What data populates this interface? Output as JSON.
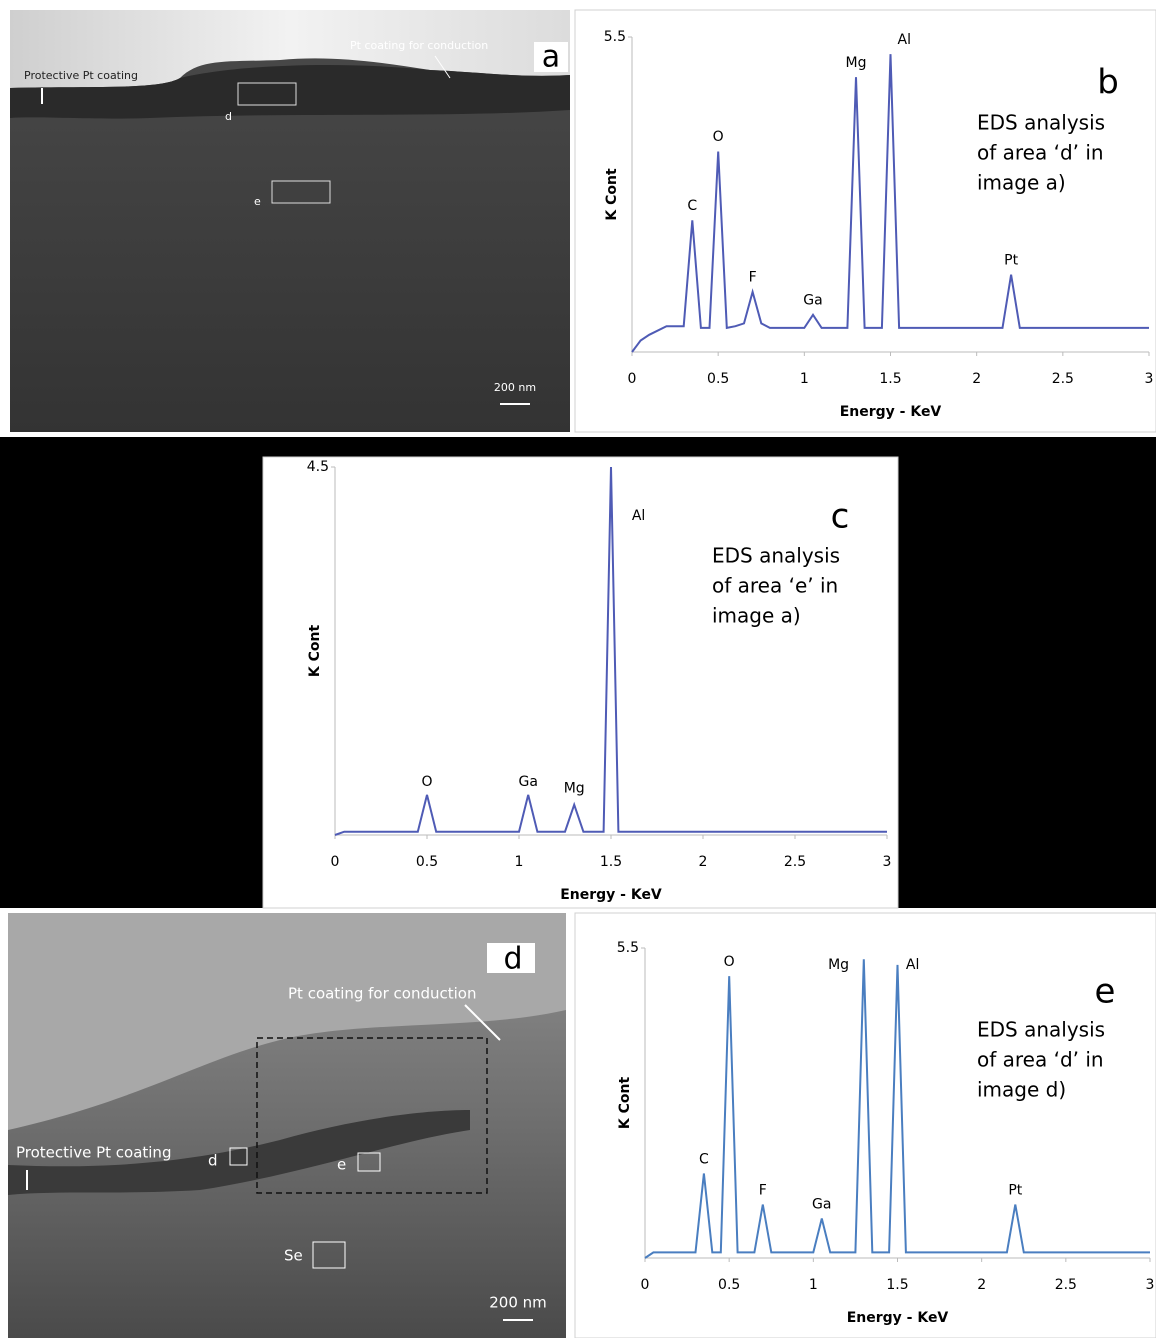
{
  "chart_data": [
    {
      "type": "line",
      "panel": "b",
      "xlabel": "Energy - KeV",
      "ylabel": "K Cont",
      "note": [
        "EDS analysis",
        "of area ‘d’ in",
        "image a)"
      ],
      "color": "#4f5bb5",
      "xlim": [
        0,
        3
      ],
      "ylim": [
        0,
        5.5
      ],
      "xticks": [
        0,
        0.5,
        1,
        1.5,
        2,
        2.5,
        3
      ],
      "yticks": [
        5.5
      ],
      "x": [
        0,
        0.05,
        0.1,
        0.2,
        0.3,
        0.35,
        0.4,
        0.45,
        0.5,
        0.55,
        0.6,
        0.65,
        0.7,
        0.75,
        0.8,
        1.0,
        1.05,
        1.1,
        1.25,
        1.3,
        1.35,
        1.45,
        1.5,
        1.55,
        1.65,
        2.15,
        2.2,
        2.25,
        3
      ],
      "values": [
        0,
        0.2,
        0.3,
        0.45,
        0.45,
        2.3,
        0.42,
        0.42,
        3.5,
        0.42,
        0.45,
        0.5,
        1.05,
        0.5,
        0.42,
        0.42,
        0.65,
        0.42,
        0.42,
        4.8,
        0.42,
        0.42,
        5.2,
        0.42,
        0.42,
        0.42,
        1.35,
        0.42,
        0.42
      ],
      "annotations": [
        {
          "text": "C",
          "x": 0.35,
          "y": 2.55
        },
        {
          "text": "O",
          "x": 0.5,
          "y": 3.75
        },
        {
          "text": "F",
          "x": 0.7,
          "y": 1.3
        },
        {
          "text": "Ga",
          "x": 1.05,
          "y": 0.9
        },
        {
          "text": "Mg",
          "x": 1.3,
          "y": 5.05
        },
        {
          "text": "Al",
          "x": 1.58,
          "y": 5.45
        },
        {
          "text": "Pt",
          "x": 2.2,
          "y": 1.6
        }
      ]
    },
    {
      "type": "line",
      "panel": "c",
      "xlabel": "Energy - KeV",
      "ylabel": "K Cont",
      "note": [
        "EDS analysis",
        "of area ‘e’ in",
        "image a)"
      ],
      "color": "#4f5bb5",
      "xlim": [
        0,
        3
      ],
      "ylim": [
        0,
        4.5
      ],
      "xticks": [
        0,
        0.5,
        1,
        1.5,
        2,
        2.5,
        3
      ],
      "yticks": [
        4.5
      ],
      "x": [
        0,
        0.05,
        0.45,
        0.5,
        0.55,
        1.0,
        1.05,
        1.1,
        1.25,
        1.3,
        1.35,
        1.46,
        1.5,
        1.54,
        3
      ],
      "values": [
        0,
        0.04,
        0.04,
        0.49,
        0.04,
        0.04,
        0.49,
        0.04,
        0.04,
        0.37,
        0.04,
        0.04,
        4.5,
        0.04,
        0.04
      ],
      "annotations": [
        {
          "text": "O",
          "x": 0.5,
          "y": 0.65
        },
        {
          "text": "Ga",
          "x": 1.05,
          "y": 0.65
        },
        {
          "text": "Mg",
          "x": 1.3,
          "y": 0.57
        },
        {
          "text": "Al",
          "x": 1.65,
          "y": 3.9
        }
      ]
    },
    {
      "type": "line",
      "panel": "e",
      "xlabel": "Energy - KeV",
      "ylabel": "K Cont",
      "note": [
        "EDS analysis",
        "of area ‘d’ in",
        "image d)"
      ],
      "color": "#4a7ec0",
      "xlim": [
        0,
        3
      ],
      "ylim": [
        0,
        5.5
      ],
      "xticks": [
        0,
        0.5,
        1,
        1.5,
        2,
        2.5,
        3
      ],
      "yticks": [
        5.5
      ],
      "x": [
        0,
        0.05,
        0.3,
        0.35,
        0.4,
        0.45,
        0.5,
        0.55,
        0.65,
        0.7,
        0.75,
        1.0,
        1.05,
        1.1,
        1.25,
        1.3,
        1.35,
        1.45,
        1.5,
        1.55,
        2.15,
        2.2,
        2.25,
        3
      ],
      "values": [
        0,
        0.1,
        0.1,
        1.5,
        0.1,
        0.1,
        5.0,
        0.1,
        0.1,
        0.95,
        0.1,
        0.1,
        0.7,
        0.1,
        0.1,
        5.3,
        0.1,
        0.1,
        5.2,
        0.1,
        0.1,
        0.95,
        0.1,
        0.1
      ],
      "annotations": [
        {
          "text": "C",
          "x": 0.35,
          "y": 1.75
        },
        {
          "text": "O",
          "x": 0.5,
          "y": 5.25
        },
        {
          "text": "F",
          "x": 0.7,
          "y": 1.2
        },
        {
          "text": "Ga",
          "x": 1.05,
          "y": 0.95
        },
        {
          "text": "Mg",
          "x": 1.15,
          "y": 5.2
        },
        {
          "text": "Al",
          "x": 1.59,
          "y": 5.2
        },
        {
          "text": "Pt",
          "x": 2.2,
          "y": 1.2
        }
      ]
    }
  ],
  "sem_a": {
    "panel": "a",
    "top_label": "Pt coating for conduction",
    "side_label": "Protective Pt coating",
    "areas": [
      "d",
      "e"
    ],
    "scale": "200 nm"
  },
  "sem_d": {
    "panel": "d",
    "top_label": "Pt coating for conduction",
    "side_label": "Protective Pt coating",
    "areas": [
      "d",
      "e",
      "Se"
    ],
    "scale": "200 nm"
  }
}
